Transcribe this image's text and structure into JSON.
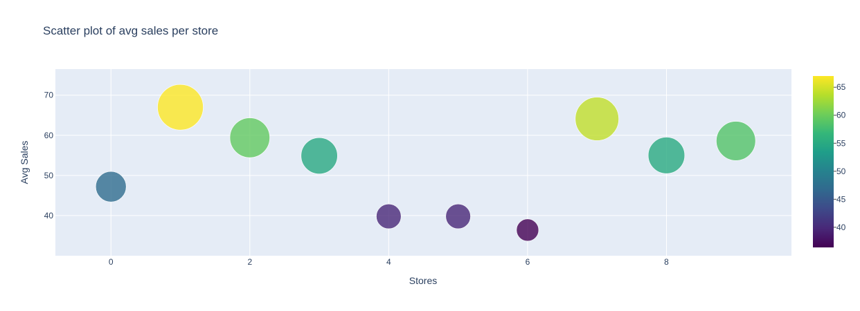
{
  "chart_data": {
    "type": "scatter",
    "title": "Scatter plot of avg sales per store",
    "xlabel": "Stores",
    "ylabel": "Avg Sales",
    "xlim": [
      -0.8,
      9.8
    ],
    "ylim": [
      30,
      76.5
    ],
    "xticks": [
      0,
      2,
      4,
      6,
      8
    ],
    "yticks": [
      40,
      50,
      60,
      70
    ],
    "x": [
      0,
      1,
      2,
      3,
      4,
      5,
      6,
      7,
      8,
      9
    ],
    "y": [
      47.2,
      67.0,
      59.4,
      54.9,
      39.8,
      39.8,
      36.4,
      64.1,
      55.0,
      58.6
    ],
    "marker_size_by": "Avg Sales",
    "marker_opacity": 0.8,
    "colorscale": "Viridis",
    "colorbar": {
      "range": [
        36.4,
        67.0
      ],
      "ticks": [
        40,
        45,
        50,
        55,
        60,
        65
      ]
    },
    "grid": true
  }
}
